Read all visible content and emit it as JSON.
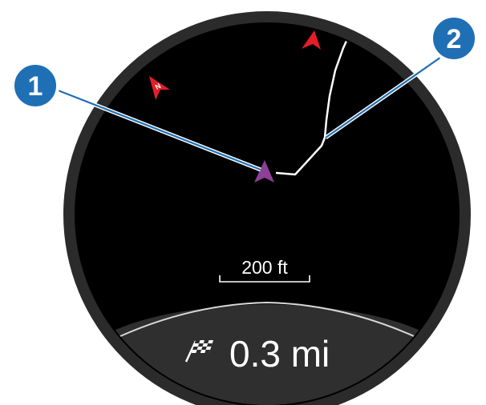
{
  "map": {
    "scale_label": "200 ft",
    "distance_value": "0.3 mi",
    "distance_icon": "checkered-flag-icon",
    "position_icon": "position-arrow-icon",
    "waypoint_icon": "red-arrow-icon",
    "north_marker_letter": "N"
  },
  "callouts": [
    {
      "number": "1"
    },
    {
      "number": "2"
    }
  ],
  "colors": {
    "bezel": "#2b2b2b",
    "screen": "#000000",
    "track": "#ffffff",
    "position_marker": "#8e3f96",
    "waypoint_red": "#e41e26",
    "callout_fill": "#1f6fb5",
    "callout_line": "#1f6fb5"
  }
}
